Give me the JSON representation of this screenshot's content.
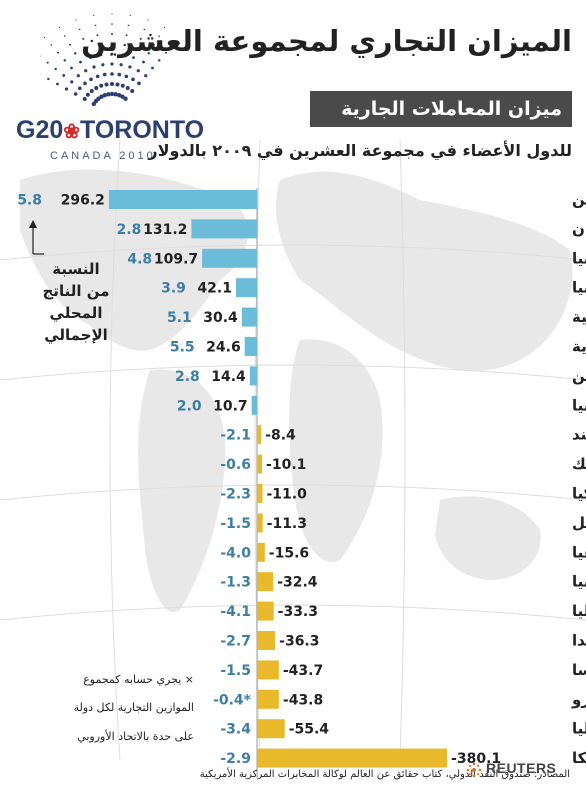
{
  "title": "الميزان التجاري لمجموعة العشرين",
  "subtitle": "ميزان المعاملات الجارية",
  "unit_line": "للدول الأعضاء في مجموعة العشرين في ٢٠٠٩ بالدولار",
  "logo": {
    "g20_text": "G20",
    "city_text": "TORONTO",
    "canada_text": "CANADA 2010",
    "leaf_icon": "maple-leaf-icon"
  },
  "gdp_note": [
    "النسبة",
    "من الناتج",
    "المحلي",
    "الإجمالي"
  ],
  "euro_note": [
    "× يجري حسابه كمجموع",
    "الموازين التجارية لكل دولة",
    "على حدة بالاتحاد الأوروبي"
  ],
  "source": "المصادر: صندوق النقد الدولي، كتاب حقائق عن العالم لوكالة المخابرات المركزية الأمريكية",
  "reuters": "REUTERS",
  "colors": {
    "positive": "#6bbcd8",
    "negative": "#e8b92b",
    "pct": "#3d7da6",
    "header_box": "#4a4a4a"
  },
  "chart_data": {
    "type": "bar",
    "title": "الميزان التجاري لمجموعة العشرين",
    "categories": [
      "الصين",
      "اليابان",
      "المانيا",
      "روسيا",
      "كوريا الجنوبية",
      "السعودية",
      "الأرجنتين",
      "اندونيسيا",
      "الهند",
      "المكسيك",
      "تركيا",
      "البرازيل",
      "جنوب افريقيا",
      "بريطانيا",
      "استراليا",
      "كندا",
      "فرنسا",
      "منطقة اليورو",
      "إيطاليا",
      "أمريكا"
    ],
    "values": [
      296.2,
      131.2,
      109.7,
      42.1,
      30.4,
      24.6,
      14.4,
      10.7,
      -8.4,
      -10.1,
      -11.0,
      -11.3,
      -15.6,
      -32.4,
      -33.3,
      -36.3,
      -43.7,
      -43.8,
      -55.4,
      -380.1
    ],
    "value_labels": [
      "296.2",
      "131.2",
      "109.7",
      "42.1",
      "30.4",
      "24.6",
      "14.4",
      "10.7",
      "-8.4",
      "-10.1",
      "-11.0",
      "-11.3",
      "-15.6",
      "-32.4",
      "-33.3",
      "-36.3",
      "-43.7",
      "-43.8",
      "-55.4",
      "-380.1"
    ],
    "pct_of_gdp": [
      "5.8",
      "2.8",
      "4.8",
      "3.9",
      "5.1",
      "5.5",
      "2.8",
      "2.0",
      "-2.1",
      "-0.6",
      "-2.3",
      "-1.5",
      "-4.0",
      "-1.3",
      "-4.1",
      "-2.7",
      "-1.5",
      "-0.4*",
      "-3.4",
      "-2.9"
    ],
    "orientation": "horizontal"
  }
}
